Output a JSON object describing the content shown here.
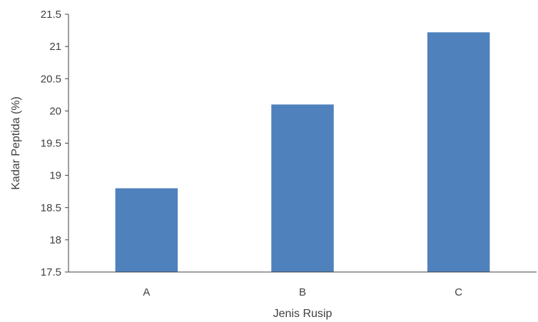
{
  "chart_data": {
    "type": "bar",
    "categories": [
      "A",
      "B",
      "C"
    ],
    "values": [
      18.8,
      20.1,
      21.22
    ],
    "title": "",
    "xlabel": "Jenis Rusip",
    "ylabel": "Kadar Peptida (%)",
    "ylim": [
      17.5,
      21.5
    ],
    "yticks": [
      "17.5",
      "18",
      "18.5",
      "19",
      "19.5",
      "20",
      "20.5",
      "21",
      "21.5"
    ],
    "grid": false,
    "legend": "none",
    "bar_color": "#4f81bd",
    "axis_color": "#404040"
  }
}
